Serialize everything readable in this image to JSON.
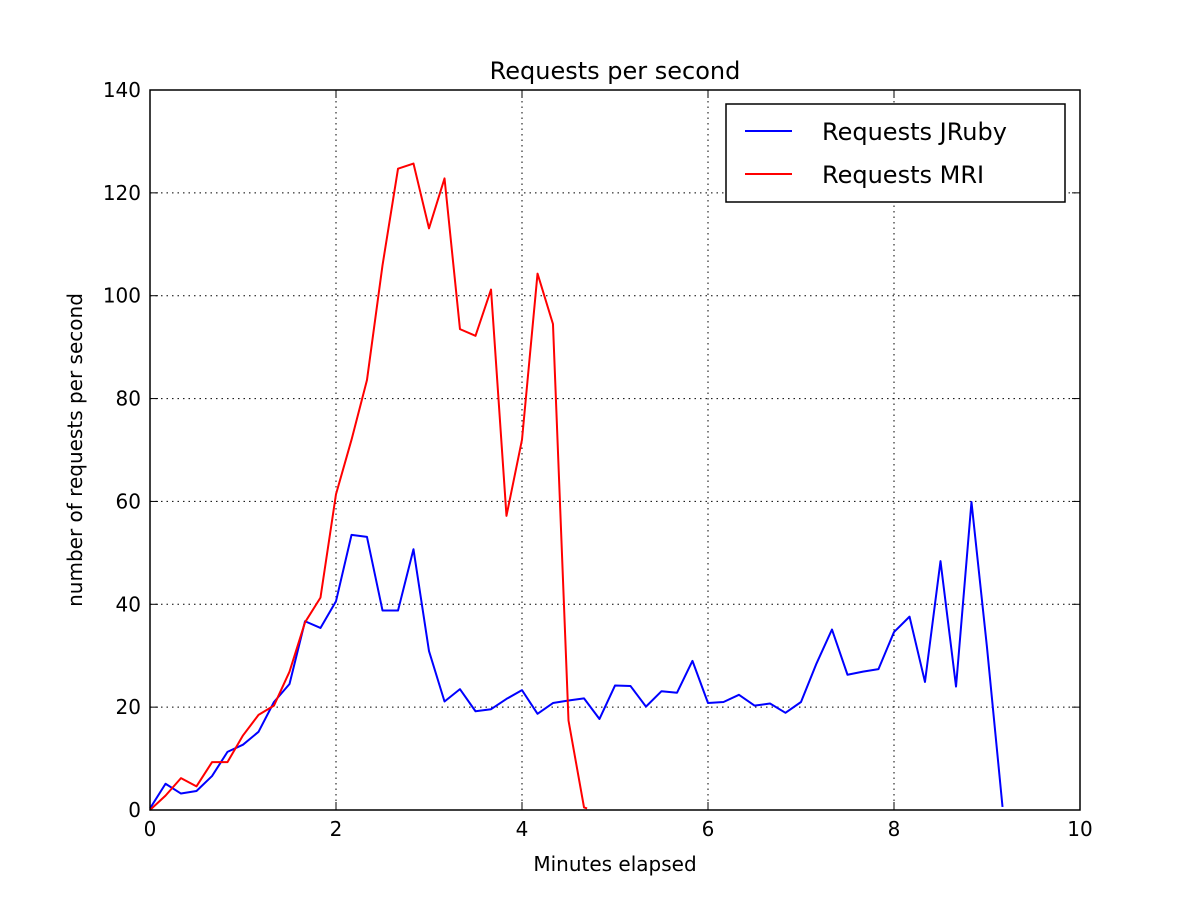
{
  "chart_data": {
    "type": "line",
    "title": "Requests per second",
    "xlabel": "Minutes elapsed",
    "ylabel": "number of requests per second",
    "xlim": [
      0,
      10
    ],
    "ylim": [
      0,
      140
    ],
    "xticks": [
      0,
      2,
      4,
      6,
      8,
      10
    ],
    "yticks": [
      0,
      20,
      40,
      60,
      80,
      100,
      120,
      140
    ],
    "grid": true,
    "legend_position": "top-right",
    "series": [
      {
        "name": "Requests JRuby",
        "color": "#0000ff",
        "x": [
          0.0,
          0.167,
          0.333,
          0.5,
          0.667,
          0.833,
          1.0,
          1.167,
          1.333,
          1.5,
          1.667,
          1.833,
          2.0,
          2.167,
          2.333,
          2.5,
          2.667,
          2.833,
          3.0,
          3.167,
          3.333,
          3.5,
          3.667,
          3.833,
          4.0,
          4.167,
          4.333,
          4.5,
          4.667,
          4.833,
          5.0,
          5.167,
          5.333,
          5.5,
          5.667,
          5.833,
          6.0,
          6.167,
          6.333,
          6.5,
          6.667,
          6.833,
          7.0,
          7.167,
          7.333,
          7.5,
          7.667,
          7.833,
          8.0,
          8.167,
          8.333,
          8.5,
          8.667,
          8.833,
          9.0,
          9.167
        ],
        "y": [
          0.3,
          5.1,
          3.2,
          3.7,
          6.6,
          11.3,
          12.7,
          15.2,
          21.0,
          24.5,
          36.7,
          35.4,
          40.6,
          53.5,
          53.1,
          38.8,
          38.8,
          50.7,
          30.9,
          21.1,
          23.5,
          19.2,
          19.6,
          21.6,
          23.3,
          18.7,
          20.8,
          21.3,
          21.7,
          17.7,
          24.2,
          24.1,
          20.1,
          23.1,
          22.8,
          29.0,
          20.8,
          21.0,
          22.4,
          20.3,
          20.7,
          18.9,
          21.0,
          28.5,
          35.1,
          26.3,
          26.9,
          27.4,
          34.6,
          37.6,
          24.9,
          48.4,
          24.0,
          59.9,
          31.6,
          0.6
        ]
      },
      {
        "name": "Requests MRI",
        "color": "#ff0000",
        "x": [
          0.0,
          0.167,
          0.333,
          0.5,
          0.667,
          0.833,
          1.0,
          1.167,
          1.333,
          1.5,
          1.667,
          1.833,
          2.0,
          2.167,
          2.333,
          2.5,
          2.667,
          2.833,
          3.0,
          3.167,
          3.333,
          3.5,
          3.667,
          3.833,
          4.0,
          4.167,
          4.333,
          4.5,
          4.667,
          4.7
        ],
        "y": [
          0.0,
          2.8,
          6.2,
          4.6,
          9.3,
          9.3,
          14.5,
          18.5,
          20.3,
          26.9,
          36.5,
          41.3,
          61.4,
          72.0,
          83.6,
          105.9,
          124.7,
          125.7,
          113.1,
          122.8,
          93.5,
          92.2,
          101.2,
          57.2,
          72.0,
          104.3,
          94.5,
          17.4,
          0.5,
          0.3
        ]
      }
    ]
  }
}
